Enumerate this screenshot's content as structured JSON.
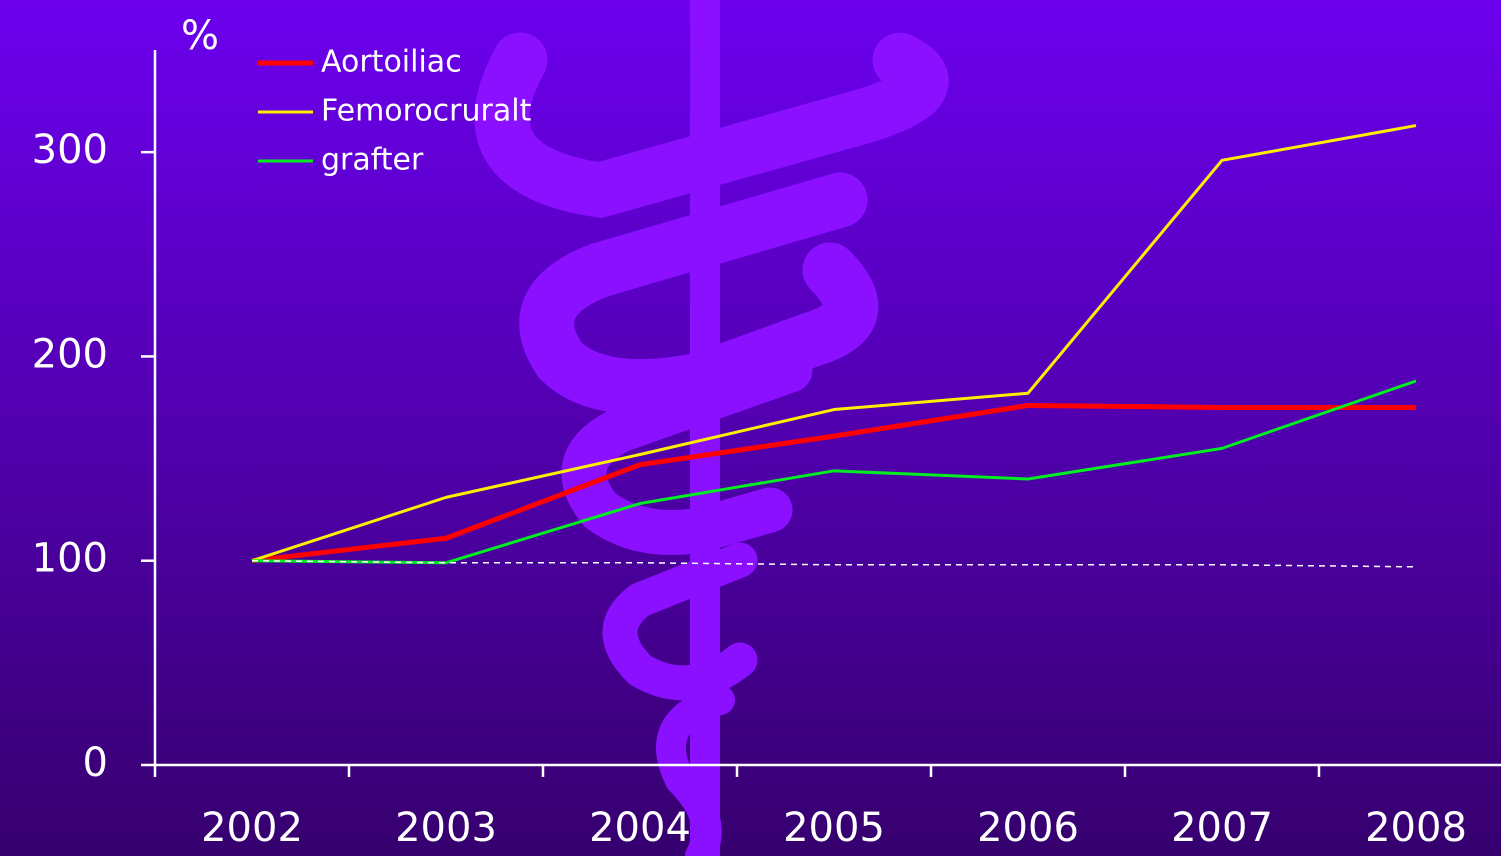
{
  "chart_data": {
    "type": "line",
    "y_label": "%",
    "categories": [
      "2002",
      "2003",
      "2004",
      "2005",
      "2006",
      "2007",
      "2008"
    ],
    "series": [
      {
        "name": "Aortoiliac",
        "color": "#ff0000",
        "width": 5,
        "values": [
          100,
          111,
          147,
          161,
          176,
          175,
          175
        ]
      },
      {
        "name": "Femorocruralt",
        "color": "#ffee00",
        "width": 3,
        "values": [
          100,
          131,
          152,
          174,
          182,
          296,
          313
        ]
      },
      {
        "name": "grafter",
        "color": "#00ee22",
        "width": 3,
        "values": [
          100,
          99,
          128,
          144,
          140,
          155,
          188
        ]
      },
      {
        "color": "#ffffff",
        "width": 1.5,
        "dashed": true,
        "values": [
          100,
          99,
          99,
          98,
          98,
          98,
          97
        ]
      }
    ],
    "ylim": [
      0,
      350
    ],
    "yticks": [
      0,
      100,
      200,
      300
    ],
    "legend": "top-left"
  }
}
